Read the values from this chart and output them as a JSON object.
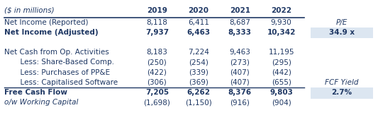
{
  "header_label": "($ in millions)",
  "columns": [
    "2019",
    "2020",
    "2021",
    "2022"
  ],
  "rows": [
    {
      "label": "Net Income (Reported)",
      "values": [
        "8,118",
        "6,411",
        "8,687",
        "9,930"
      ],
      "bold": false,
      "italic": false,
      "indent": false
    },
    {
      "label": "Net Income (Adjusted)",
      "values": [
        "7,937",
        "6,463",
        "8,333",
        "10,342"
      ],
      "bold": true,
      "italic": false,
      "indent": false
    },
    {
      "label": "",
      "values": [
        "",
        "",
        "",
        ""
      ],
      "bold": false,
      "italic": false,
      "indent": false
    },
    {
      "label": "Net Cash from Op. Activities",
      "values": [
        "8,183",
        "7,224",
        "9,463",
        "11,195"
      ],
      "bold": false,
      "italic": false,
      "indent": false
    },
    {
      "label": "  Less: Share-Based Comp.",
      "values": [
        "(250)",
        "(254)",
        "(273)",
        "(295)"
      ],
      "bold": false,
      "italic": false,
      "indent": true
    },
    {
      "label": "  Less: Purchases of PP&E",
      "values": [
        "(422)",
        "(339)",
        "(407)",
        "(442)"
      ],
      "bold": false,
      "italic": false,
      "indent": true
    },
    {
      "label": "  Less: Capitalised Software",
      "values": [
        "(306)",
        "(369)",
        "(407)",
        "(655)"
      ],
      "bold": false,
      "italic": false,
      "indent": true
    },
    {
      "label": "Free Cash Flow",
      "values": [
        "7,205",
        "6,262",
        "8,376",
        "9,803"
      ],
      "bold": true,
      "italic": false,
      "indent": false
    },
    {
      "label": "o/w Working Capital",
      "values": [
        "(1,698)",
        "(1,150)",
        "(916)",
        "(904)"
      ],
      "bold": false,
      "italic": true,
      "indent": false
    }
  ],
  "side_labels": [
    {
      "row": 0,
      "text": "P/E",
      "bold": false,
      "italic": true,
      "highlight": false
    },
    {
      "row": 1,
      "text": "34.9 x",
      "bold": true,
      "italic": false,
      "highlight": true
    },
    {
      "row": 6,
      "text": "FCF Yield",
      "bold": false,
      "italic": true,
      "highlight": false
    },
    {
      "row": 7,
      "text": "2.7%",
      "bold": true,
      "italic": false,
      "highlight": true
    }
  ],
  "highlight_color": "#dce6f1",
  "line_color": "#1f3864",
  "text_color": "#1f3864",
  "bg_color": "#ffffff",
  "font_size": 7.5
}
